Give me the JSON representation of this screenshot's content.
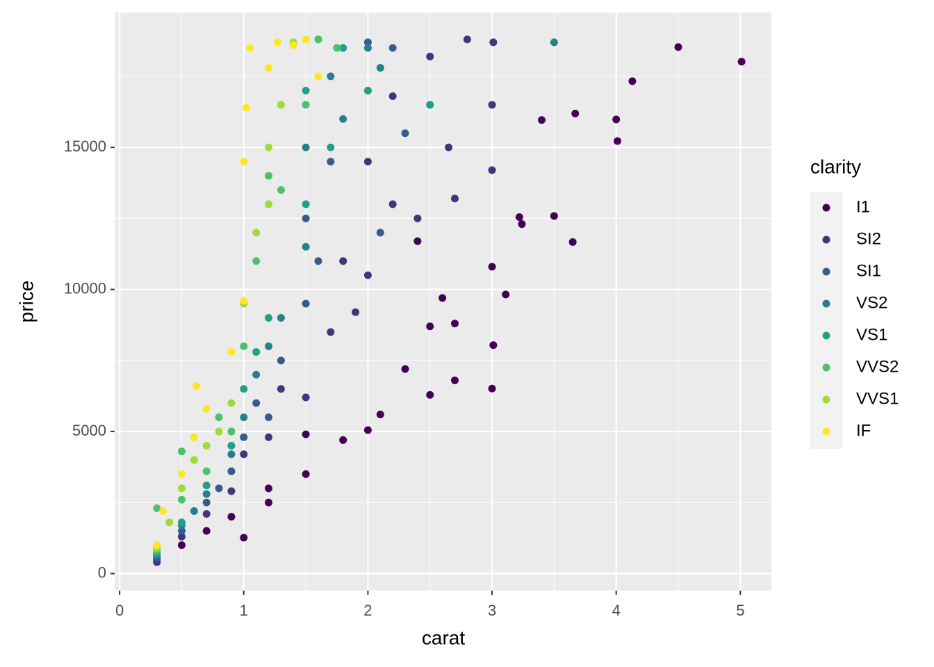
{
  "chart_data": {
    "type": "scatter",
    "x_label": "carat",
    "y_label": "price",
    "legend_title": "clarity",
    "legend_position": "right",
    "xlim": [
      -0.04,
      5.25
    ],
    "ylim": [
      -599,
      19748
    ],
    "xticks": [
      0,
      1,
      2,
      3,
      4,
      5
    ],
    "yticks": [
      0,
      5000,
      10000,
      15000
    ],
    "x_minor_ticks": [
      0.5,
      1.5,
      2.5,
      3.5,
      4.5
    ],
    "y_minor_ticks": [
      2500,
      7500,
      12500,
      17500
    ],
    "grid": true,
    "series": [
      {
        "name": "I1",
        "color": "#440154",
        "x": [
          5.01,
          4.5,
          4.13,
          4.01,
          4.0,
          3.67,
          3.4,
          3.65,
          3.5,
          3.22,
          3.24,
          3.11,
          3.0,
          2.5,
          2.0,
          1.5,
          1.0,
          0.3,
          0.5,
          0.7,
          0.9,
          1.2,
          1.5,
          1.8,
          2.1,
          2.3,
          2.7,
          2.5,
          2.7,
          3.0,
          3.01,
          2.6,
          2.4,
          1.2
        ],
        "y": [
          18018,
          18531,
          17329,
          15223,
          15984,
          16193,
          15964,
          11668,
          12587,
          12545,
          12300,
          9823,
          6512,
          6289,
          5051,
          4900,
          1262,
          500,
          1000,
          1500,
          2000,
          3000,
          3500,
          4700,
          5600,
          7200,
          6800,
          8700,
          8800,
          10800,
          8040,
          9700,
          11700,
          2500
        ]
      },
      {
        "name": "SI2",
        "color": "#46337E",
        "x": [
          0.3,
          0.5,
          0.7,
          0.9,
          1.0,
          1.2,
          1.5,
          1.7,
          2.0,
          2.0,
          2.2,
          2.5,
          2.8,
          3.01,
          3.0,
          2.65,
          2.4,
          1.8,
          1.3,
          2.2,
          3.0,
          2.7,
          1.9
        ],
        "y": [
          400,
          1300,
          2100,
          2900,
          4200,
          4800,
          6200,
          8500,
          10500,
          14500,
          16800,
          18200,
          18800,
          18700,
          14200,
          15000,
          12500,
          11000,
          6500,
          13000,
          16500,
          13200,
          9200
        ]
      },
      {
        "name": "SI1",
        "color": "#365C8D",
        "x": [
          0.3,
          0.5,
          0.7,
          0.9,
          1.0,
          1.1,
          1.3,
          1.5,
          1.5,
          1.7,
          2.0,
          2.0,
          2.2,
          2.3,
          2.1,
          1.6,
          1.2,
          0.8,
          2.5
        ],
        "y": [
          550,
          1500,
          2500,
          3600,
          4800,
          6000,
          7500,
          9500,
          12500,
          14500,
          17000,
          18700,
          18500,
          15500,
          12000,
          11000,
          5500,
          3000,
          16500
        ]
      },
      {
        "name": "VS2",
        "color": "#277F8E",
        "x": [
          0.3,
          0.5,
          0.7,
          0.9,
          1.0,
          1.1,
          1.3,
          1.5,
          1.5,
          1.7,
          2.0,
          3.5,
          1.2,
          1.8,
          2.1,
          0.6
        ],
        "y": [
          650,
          1700,
          2800,
          4200,
          5500,
          7000,
          9000,
          11500,
          15000,
          17500,
          18500,
          18700,
          8000,
          16000,
          17800,
          2200
        ]
      },
      {
        "name": "VS1",
        "color": "#1FA187",
        "x": [
          0.3,
          0.5,
          0.7,
          0.9,
          1.0,
          1.2,
          1.5,
          1.5,
          1.6,
          1.8,
          2.5,
          1.1,
          1.7,
          2.0
        ],
        "y": [
          700,
          1800,
          3100,
          4500,
          6500,
          9000,
          13000,
          17000,
          18800,
          18500,
          16500,
          7800,
          15000,
          17000
        ]
      },
      {
        "name": "VVS2",
        "color": "#4AC16D",
        "x": [
          0.3,
          0.3,
          0.5,
          0.5,
          0.7,
          0.9,
          1.0,
          1.1,
          1.3,
          1.5,
          1.6,
          1.2,
          0.8,
          1.75
        ],
        "y": [
          800,
          2300,
          2600,
          4300,
          3600,
          5000,
          8000,
          11000,
          13500,
          16500,
          18800,
          14000,
          5500,
          18500
        ]
      },
      {
        "name": "VVS1",
        "color": "#9FDA3A",
        "x": [
          0.3,
          0.4,
          0.5,
          0.6,
          0.7,
          0.9,
          1.0,
          1.1,
          1.2,
          1.3,
          1.4,
          1.2,
          0.8
        ],
        "y": [
          900,
          1800,
          3000,
          4000,
          4500,
          6000,
          9500,
          12000,
          15000,
          16500,
          18700,
          13000,
          5000
        ]
      },
      {
        "name": "IF",
        "color": "#FDE725",
        "x": [
          0.3,
          0.35,
          0.5,
          0.6,
          0.7,
          0.62,
          0.9,
          1.0,
          1.0,
          1.02,
          1.05,
          1.2,
          1.27,
          1.4,
          1.5,
          1.6
        ],
        "y": [
          1000,
          2200,
          3500,
          4800,
          5800,
          6600,
          7800,
          9600,
          14500,
          16400,
          18500,
          17800,
          18700,
          18600,
          18800,
          17500
        ]
      }
    ]
  }
}
